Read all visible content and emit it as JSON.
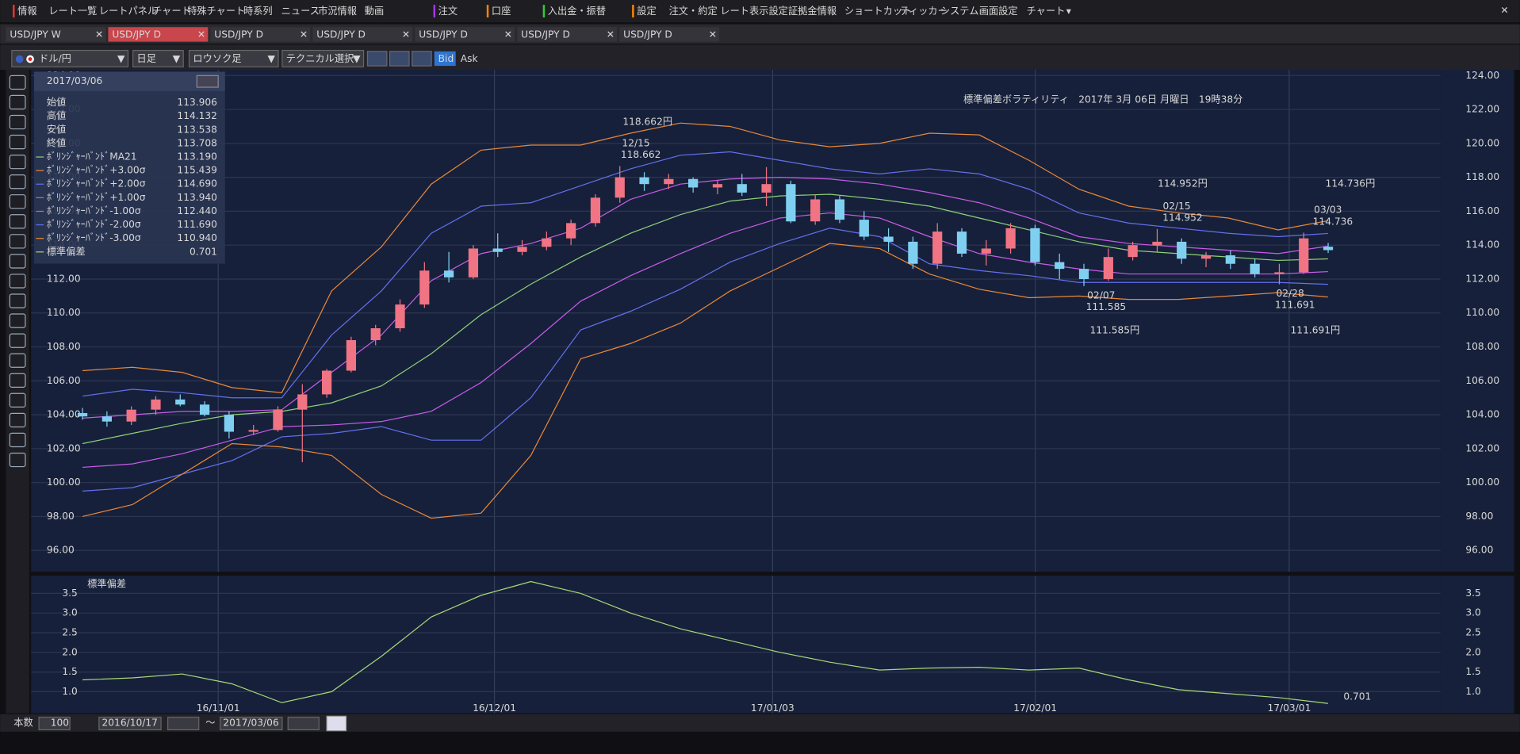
{
  "menu": [
    "情報",
    "レート一覧",
    "レートパネル",
    "チャート",
    "特殊チャート",
    "時系列",
    "ニュース",
    "市況情報",
    "動画",
    "注文",
    "口座",
    "入出金・振替",
    "設定",
    "注文・約定",
    "レート表示設定",
    "証拠金情報",
    "ショートカット",
    "ティッカー",
    "システム",
    "画面設定",
    "チャート"
  ],
  "tabs": [
    "USD/JPY W",
    "USD/JPY D",
    "USD/JPY D",
    "USD/JPY D",
    "USD/JPY D",
    "USD/JPY D",
    "USD/JPY D"
  ],
  "toolbar": {
    "pair": "ドル/円",
    "period": "日足",
    "style": "ロウソク足",
    "technical": "テクニカル選択",
    "bid": "Bid",
    "ask": "Ask"
  },
  "info_panel": {
    "date": "2017/03/06",
    "price_rows": [
      [
        "始値",
        "113.906"
      ],
      [
        "高値",
        "114.132"
      ],
      [
        "安値",
        "113.538"
      ],
      [
        "終値",
        "113.708"
      ]
    ],
    "band_values": [
      "113.190",
      "115.439",
      "114.690",
      "113.940",
      "112.440",
      "111.690",
      "110.940"
    ],
    "sd_name": "標準偏差",
    "sd_value": "0.701"
  },
  "chart_data": {
    "type": "candlestick",
    "title": "標準偏差ボラティリティ　2017年 3月 06日 月曜日　19時38分",
    "up_color": "#f07484",
    "down_color": "#7fd0f0",
    "open": [
      104.1,
      103.9,
      103.6,
      104.3,
      104.9,
      104.6,
      104.0,
      103.0,
      103.1,
      104.3,
      105.2,
      106.6,
      108.4,
      109.1,
      110.5,
      112.5,
      112.1,
      113.8,
      113.6,
      113.9,
      114.4,
      115.3,
      116.8,
      118.0,
      117.6,
      117.9,
      117.4,
      117.6,
      117.1,
      117.6,
      115.4,
      116.7,
      115.5,
      114.5,
      114.2,
      112.9,
      114.8,
      113.5,
      113.8,
      115.0,
      113.0,
      112.6,
      112.0,
      113.3,
      114.0,
      114.2,
      113.2,
      113.4,
      112.9,
      112.3,
      112.4,
      113.906
    ],
    "high": [
      104.4,
      104.2,
      104.5,
      105.1,
      105.2,
      104.8,
      104.2,
      103.4,
      104.5,
      105.8,
      106.7,
      108.6,
      109.3,
      110.8,
      113.0,
      113.6,
      114.0,
      114.7,
      114.3,
      114.8,
      115.5,
      117.0,
      118.662,
      118.3,
      118.2,
      118.0,
      117.8,
      118.2,
      118.6,
      117.8,
      117.0,
      116.9,
      116.0,
      115.0,
      114.5,
      115.3,
      115.0,
      114.3,
      115.3,
      115.2,
      113.5,
      112.9,
      113.8,
      114.2,
      114.952,
      114.4,
      113.6,
      113.7,
      113.2,
      112.9,
      114.736,
      114.132
    ],
    "low": [
      103.7,
      103.3,
      103.4,
      104.0,
      104.5,
      103.9,
      102.6,
      102.8,
      103.0,
      101.2,
      105.0,
      106.5,
      108.1,
      108.9,
      110.3,
      111.8,
      112.0,
      113.3,
      113.4,
      113.7,
      114.0,
      115.1,
      116.5,
      117.2,
      117.3,
      117.1,
      117.0,
      116.9,
      116.3,
      115.3,
      115.2,
      115.3,
      114.3,
      113.6,
      112.6,
      112.6,
      113.3,
      112.8,
      113.5,
      112.8,
      112.0,
      111.585,
      111.9,
      113.1,
      113.6,
      112.9,
      112.7,
      112.6,
      112.1,
      111.691,
      112.3,
      113.538
    ],
    "close": [
      103.9,
      103.6,
      104.3,
      104.9,
      104.6,
      104.0,
      103.0,
      103.1,
      104.3,
      105.2,
      106.6,
      108.4,
      109.1,
      110.5,
      112.5,
      112.1,
      113.8,
      113.6,
      113.9,
      114.4,
      115.3,
      116.8,
      118.0,
      117.6,
      117.9,
      117.4,
      117.6,
      117.1,
      117.6,
      115.4,
      116.7,
      115.5,
      114.5,
      114.2,
      112.9,
      114.8,
      113.5,
      113.8,
      115.0,
      113.0,
      112.6,
      112.0,
      113.3,
      114.0,
      114.2,
      113.2,
      113.4,
      112.9,
      112.3,
      112.4,
      114.4,
      113.708
    ],
    "series": [
      {
        "name": "ﾎﾞﾘﾝｼﾞｬｰﾊﾞﾝﾄﾞMA21",
        "color": "#8fd07a",
        "values": [
          102.3,
          102.9,
          103.5,
          104.0,
          104.2,
          104.7,
          105.7,
          107.6,
          109.9,
          111.7,
          113.3,
          114.7,
          115.8,
          116.6,
          116.9,
          117.0,
          116.7,
          116.3,
          115.6,
          114.9,
          114.2,
          113.7,
          113.5,
          113.3,
          113.1,
          113.19
        ]
      },
      {
        "name": "ﾎﾞﾘﾝｼﾞｬｰﾊﾞﾝﾄﾞ+3.00σ",
        "color": "#e8883a",
        "values": [
          106.6,
          106.8,
          106.5,
          105.6,
          105.3,
          111.3,
          113.9,
          117.6,
          119.6,
          119.9,
          119.9,
          120.6,
          121.2,
          121.0,
          120.2,
          119.8,
          120.0,
          120.6,
          120.5,
          119.0,
          117.3,
          116.3,
          115.9,
          115.6,
          114.9,
          115.439
        ]
      },
      {
        "name": "ﾎﾞﾘﾝｼﾞｬｰﾊﾞﾝﾄﾞ+2.00σ",
        "color": "#6470ee",
        "values": [
          105.1,
          105.5,
          105.3,
          105.0,
          105.0,
          108.7,
          111.3,
          114.7,
          116.3,
          116.5,
          117.5,
          118.5,
          119.3,
          119.5,
          119.0,
          118.5,
          118.2,
          118.5,
          118.2,
          117.3,
          115.9,
          115.3,
          115.0,
          114.7,
          114.5,
          114.69
        ]
      },
      {
        "name": "ﾎﾞﾘﾝｼﾞｬｰﾊﾞﾝﾄﾞ+1.00σ",
        "color": "#c85ce8",
        "values": [
          103.8,
          104.0,
          104.2,
          104.2,
          104.3,
          106.5,
          108.7,
          111.9,
          113.5,
          114.1,
          115.0,
          116.7,
          117.6,
          117.9,
          118.0,
          117.9,
          117.6,
          117.1,
          116.5,
          115.6,
          114.5,
          114.1,
          113.9,
          113.7,
          113.5,
          113.94
        ]
      },
      {
        "name": "ﾎﾞﾘﾝｼﾞｬｰﾊﾞﾝﾄﾞ-1.00σ",
        "color": "#c85ce8",
        "values": [
          100.9,
          101.1,
          101.7,
          102.5,
          103.3,
          103.4,
          103.6,
          104.2,
          105.9,
          108.2,
          110.7,
          112.2,
          113.5,
          114.7,
          115.6,
          115.9,
          115.6,
          114.5,
          113.5,
          113.0,
          112.6,
          112.3,
          112.3,
          112.3,
          112.3,
          112.44
        ]
      },
      {
        "name": "ﾎﾞﾘﾝｼﾞｬｰﾊﾞﾝﾄﾞ-2.00σ",
        "color": "#6470ee",
        "values": [
          99.5,
          99.7,
          100.5,
          101.3,
          102.7,
          102.9,
          103.3,
          102.5,
          102.5,
          105.0,
          109.0,
          110.1,
          111.4,
          113.0,
          114.1,
          115.0,
          114.5,
          112.9,
          112.5,
          112.2,
          111.8,
          111.8,
          111.8,
          111.8,
          111.8,
          111.69
        ]
      },
      {
        "name": "ﾎﾞﾘﾝｼﾞｬｰﾊﾞﾝﾄﾞ-3.00σ",
        "color": "#e8883a",
        "values": [
          98.0,
          98.7,
          100.5,
          102.3,
          102.1,
          101.6,
          99.3,
          97.9,
          98.2,
          101.6,
          107.3,
          108.2,
          109.4,
          111.3,
          112.7,
          114.1,
          113.8,
          112.3,
          111.4,
          110.9,
          111.0,
          110.8,
          110.8,
          111.0,
          111.2,
          110.94
        ]
      }
    ],
    "ylim": [
      94.74,
      124.34
    ],
    "yticks": [
      {
        "value": 96,
        "label": "96.00"
      },
      {
        "value": 98,
        "label": "98.00"
      },
      {
        "value": 100,
        "label": "100.00"
      },
      {
        "value": 102,
        "label": "102.00"
      },
      {
        "value": 104,
        "label": "104.00"
      },
      {
        "value": 106,
        "label": "106.00"
      },
      {
        "value": 108,
        "label": "108.00"
      },
      {
        "value": 110,
        "label": "110.00"
      },
      {
        "value": 112,
        "label": "112.00"
      },
      {
        "value": 114,
        "label": "114.00"
      },
      {
        "value": 116,
        "label": "116.00"
      },
      {
        "value": 118,
        "label": "118.00"
      },
      {
        "value": 120,
        "label": "120.00"
      },
      {
        "value": 122,
        "label": "122.00"
      },
      {
        "value": 124,
        "label": "124.00"
      }
    ],
    "xlabels": [
      "16/11/01",
      "16/12/01",
      "17/01/03",
      "17/02/01",
      "17/03/01"
    ],
    "annotations": [
      "118.662円",
      "12/15",
      "118.662",
      "114.952円",
      "02/15",
      "114.952",
      "114.736円",
      "03/03",
      "114.736",
      "111.585円",
      "02/07",
      "111.585",
      "111.691円",
      "02/28",
      "111.691"
    ],
    "grid": true,
    "sub_chart": {
      "name": "標準偏差",
      "color": "#a8d878",
      "values": [
        1.3,
        1.35,
        1.45,
        1.2,
        0.72,
        1.0,
        1.9,
        2.9,
        3.45,
        3.8,
        3.5,
        3.0,
        2.6,
        2.3,
        2.0,
        1.75,
        1.55,
        1.6,
        1.62,
        1.55,
        1.6,
        1.3,
        1.05,
        0.95,
        0.85,
        0.701
      ],
      "ylim": [
        0.45,
        3.95
      ],
      "yticks": [
        {
          "value": 1,
          "label": "1.0"
        },
        1.5,
        {
          "value": 2,
          "label": "2.0"
        },
        2.5,
        {
          "value": 3,
          "label": "3.0"
        },
        3.5
      ]
    }
  },
  "bottom_bar": {
    "count_label": "本数",
    "count": "100",
    "from": "2016/10/17",
    "tilde": "〜",
    "to": "2017/03/06"
  }
}
